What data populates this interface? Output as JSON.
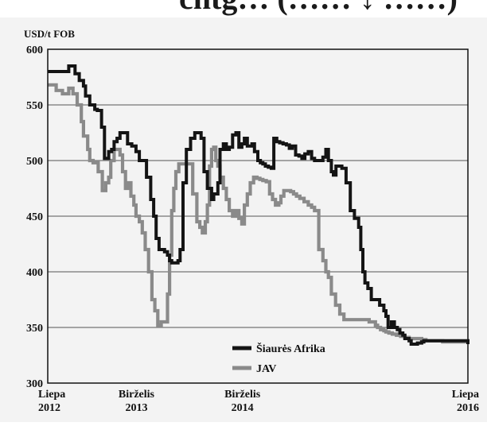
{
  "header_fragment": "cntg…  (…… ↓ ……)",
  "chart_data": {
    "type": "line",
    "title": "",
    "ylabel": "USD/t FOB",
    "xlabel": "",
    "ylim": [
      300,
      600
    ],
    "yticks": [
      300,
      350,
      400,
      450,
      500,
      550,
      600
    ],
    "x_tick_labels": [
      {
        "line1": "Liepa",
        "line2": "2012",
        "pos": 0.0
      },
      {
        "line1": "Birželis",
        "line2": "2013",
        "pos": 0.2111
      },
      {
        "line1": "Birželis",
        "line2": "2014",
        "pos": 0.4634
      },
      {
        "line1": "Liepa",
        "line2": "2016",
        "pos": 1.0
      }
    ],
    "grid": true,
    "legend": "bottom-center",
    "series": [
      {
        "name": "Šiaurės Afrika",
        "color": "#141414",
        "x": [
          0.0,
          0.045,
          0.05,
          0.062,
          0.065,
          0.075,
          0.085,
          0.09,
          0.1,
          0.105,
          0.112,
          0.118,
          0.128,
          0.135,
          0.145,
          0.152,
          0.158,
          0.165,
          0.172,
          0.178,
          0.19,
          0.2,
          0.21,
          0.218,
          0.225,
          0.235,
          0.245,
          0.252,
          0.258,
          0.265,
          0.272,
          0.278,
          0.285,
          0.29,
          0.295,
          0.302,
          0.31,
          0.315,
          0.322,
          0.33,
          0.34,
          0.35,
          0.36,
          0.365,
          0.372,
          0.38,
          0.39,
          0.395,
          0.405,
          0.41,
          0.418,
          0.425,
          0.432,
          0.44,
          0.448,
          0.455,
          0.462,
          0.468,
          0.475,
          0.48,
          0.486,
          0.492,
          0.5,
          0.506,
          0.512,
          0.518,
          0.525,
          0.532,
          0.538,
          0.545,
          0.552,
          0.56,
          0.568,
          0.575,
          0.582,
          0.59,
          0.598,
          0.605,
          0.612,
          0.62,
          0.628,
          0.635,
          0.642,
          0.648,
          0.655,
          0.662,
          0.668,
          0.675,
          0.68,
          0.686,
          0.692,
          0.7,
          0.71,
          0.72,
          0.73,
          0.74,
          0.745,
          0.75,
          0.755,
          0.762,
          0.77,
          0.778,
          0.785,
          0.79,
          0.795,
          0.8,
          0.805,
          0.81,
          0.818,
          0.825,
          0.832,
          0.838,
          0.845,
          0.85,
          0.855,
          0.86,
          0.865,
          0.87,
          0.875,
          0.88,
          0.885,
          0.89,
          0.895,
          0.9,
          0.91,
          0.92,
          0.925,
          0.93,
          0.935,
          0.94,
          0.945,
          0.95,
          0.955,
          0.96,
          0.965,
          0.97,
          0.975,
          0.98,
          0.985,
          0.99,
          0.995,
          1.0
        ],
        "values": [
          580,
          580,
          585,
          585,
          578,
          572,
          567,
          558,
          550,
          550,
          546,
          545,
          530,
          502,
          508,
          510,
          517,
          520,
          525,
          525,
          515,
          513,
          508,
          500,
          500,
          485,
          465,
          450,
          430,
          420,
          420,
          418,
          415,
          410,
          408,
          408,
          410,
          420,
          480,
          510,
          520,
          525,
          525,
          520,
          490,
          475,
          465,
          470,
          480,
          510,
          515,
          510,
          512,
          523,
          525,
          512,
          515,
          520,
          513,
          513,
          515,
          508,
          500,
          498,
          497,
          495,
          494,
          493,
          520,
          517,
          516,
          515,
          514,
          511,
          513,
          505,
          504,
          502,
          506,
          508,
          502,
          500,
          500,
          500,
          503,
          510,
          500,
          490,
          487,
          495,
          495,
          493,
          480,
          455,
          448,
          440,
          420,
          400,
          390,
          385,
          375,
          375,
          375,
          370,
          370,
          365,
          360,
          350,
          355,
          350,
          348,
          345,
          343,
          340,
          340,
          338,
          335,
          335,
          335,
          336,
          336,
          337,
          338,
          338,
          338,
          338,
          338,
          338,
          338,
          338,
          338,
          338,
          338,
          338,
          338,
          338,
          338,
          338,
          338,
          338,
          338,
          335
        ]
      },
      {
        "name": "JAV",
        "color": "#8a8a8a",
        "x": [
          0.0,
          0.02,
          0.035,
          0.05,
          0.06,
          0.07,
          0.08,
          0.085,
          0.095,
          0.1,
          0.108,
          0.115,
          0.12,
          0.13,
          0.138,
          0.145,
          0.15,
          0.158,
          0.165,
          0.172,
          0.178,
          0.185,
          0.19,
          0.198,
          0.205,
          0.21,
          0.218,
          0.225,
          0.232,
          0.24,
          0.248,
          0.255,
          0.262,
          0.27,
          0.278,
          0.285,
          0.29,
          0.295,
          0.3,
          0.305,
          0.312,
          0.32,
          0.33,
          0.335,
          0.345,
          0.355,
          0.362,
          0.368,
          0.375,
          0.38,
          0.385,
          0.39,
          0.395,
          0.4,
          0.405,
          0.41,
          0.418,
          0.425,
          0.432,
          0.44,
          0.448,
          0.455,
          0.462,
          0.468,
          0.475,
          0.482,
          0.49,
          0.498,
          0.505,
          0.512,
          0.52,
          0.528,
          0.535,
          0.542,
          0.55,
          0.555,
          0.562,
          0.57,
          0.578,
          0.585,
          0.592,
          0.6,
          0.61,
          0.62,
          0.628,
          0.635,
          0.645,
          0.655,
          0.662,
          0.668,
          0.675,
          0.685,
          0.695,
          0.705,
          0.715,
          0.725,
          0.735,
          0.742,
          0.75,
          0.758,
          0.765,
          0.772,
          0.78,
          0.785,
          0.792,
          0.8,
          0.805,
          0.812,
          0.82,
          0.83,
          0.84,
          0.85,
          0.86,
          0.87,
          0.88,
          0.89,
          0.9,
          0.92,
          0.94,
          0.96,
          0.97,
          0.98,
          0.99,
          1.0
        ],
        "values": [
          568,
          563,
          560,
          565,
          560,
          550,
          535,
          522,
          510,
          500,
          498,
          498,
          490,
          473,
          480,
          485,
          500,
          510,
          510,
          505,
          490,
          475,
          480,
          468,
          460,
          450,
          445,
          435,
          420,
          400,
          375,
          365,
          352,
          355,
          355,
          380,
          415,
          455,
          475,
          490,
          497,
          497,
          497,
          497,
          470,
          445,
          440,
          435,
          445,
          460,
          495,
          510,
          512,
          500,
          495,
          485,
          475,
          465,
          455,
          450,
          455,
          448,
          443,
          460,
          470,
          480,
          485,
          484,
          483,
          482,
          481,
          470,
          465,
          460,
          462,
          468,
          473,
          473,
          472,
          470,
          468,
          466,
          463,
          460,
          458,
          455,
          420,
          410,
          400,
          395,
          380,
          370,
          362,
          357,
          357,
          357,
          357,
          357,
          357,
          357,
          355,
          355,
          352,
          350,
          348,
          347,
          346,
          345,
          344,
          343,
          342,
          341,
          340,
          340,
          340,
          339,
          338,
          338,
          337,
          337,
          337,
          337,
          337,
          337
        ]
      }
    ]
  }
}
